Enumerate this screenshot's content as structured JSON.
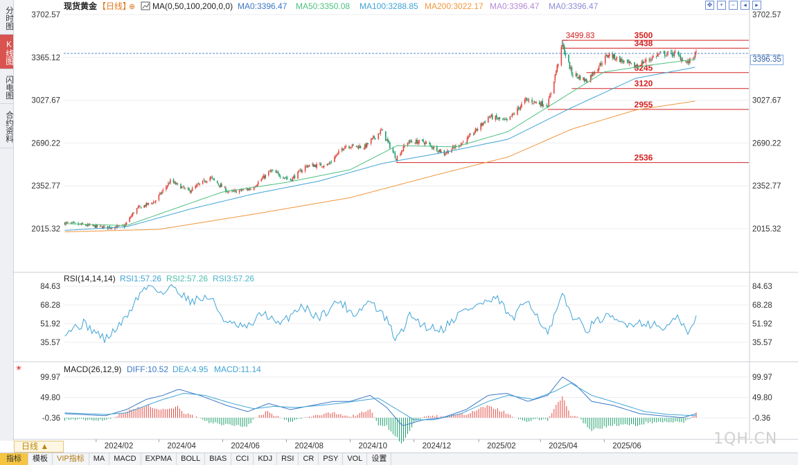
{
  "sidebar": {
    "tabs": [
      {
        "label": "分时图",
        "active": false
      },
      {
        "label": "K线图",
        "active": true
      },
      {
        "label": "闪电图",
        "active": false
      },
      {
        "label": "合约资料",
        "active": false
      }
    ]
  },
  "header": {
    "instrument": "现货黄金",
    "period": "【日线】",
    "ma_params": "MA(0,50,100,200,0,0)",
    "ma_values": [
      {
        "label": "MA0:3396.47",
        "color": "#3b78c6"
      },
      {
        "label": "MA50:3350.08",
        "color": "#4cbf7f"
      },
      {
        "label": "MA100:3288.85",
        "color": "#3fa3d6"
      },
      {
        "label": "MA200:3022.17",
        "color": "#f0963c"
      },
      {
        "label": "MA0:3396.47",
        "color": "#b48ad6"
      },
      {
        "label": "MA0:3396.47",
        "color": "#8c8cd9"
      }
    ]
  },
  "price_badge": "3396.35",
  "period_button": "日线 ▲",
  "watermark": "1QH.CN",
  "bottom_bar": [
    "指标",
    "模板",
    "VIP指标",
    "MA",
    "MACD",
    "EXPMA",
    "BOLL",
    "BIAS",
    "CCI",
    "KDJ",
    "RSI",
    "CR",
    "PSY",
    "VOL",
    "设置"
  ],
  "colors": {
    "up": "#e2453c",
    "down": "#1a9e6a",
    "ma50": "#4cbf7f",
    "ma100": "#3fa3d6",
    "ma200": "#f0963c",
    "grid": "#eceef2",
    "level": "#d42020"
  },
  "chart_data": [
    {
      "type": "candlestick",
      "title": "现货黄金【日线】",
      "x_ticks": [
        "2024/02",
        "2024/04",
        "2024/06",
        "2024/08",
        "2024/10",
        "2024/12",
        "2025/02",
        "2025/04",
        "2025/06"
      ],
      "y_ticks": [
        "3702.57",
        "3365.12",
        "3027.67",
        "2690.22",
        "2352.77",
        "2015.32"
      ],
      "ylim": [
        2015.32,
        3702.57
      ],
      "close_path": [
        [
          "2024-01-02",
          2060
        ],
        [
          "2024-02-10",
          2025
        ],
        [
          "2024-02-28",
          2035
        ],
        [
          "2024-03-10",
          2170
        ],
        [
          "2024-03-28",
          2230
        ],
        [
          "2024-04-12",
          2390
        ],
        [
          "2024-04-30",
          2310
        ],
        [
          "2024-05-20",
          2420
        ],
        [
          "2024-06-07",
          2300
        ],
        [
          "2024-06-28",
          2330
        ],
        [
          "2024-07-17",
          2470
        ],
        [
          "2024-08-05",
          2400
        ],
        [
          "2024-08-20",
          2510
        ],
        [
          "2024-09-10",
          2520
        ],
        [
          "2024-09-26",
          2670
        ],
        [
          "2024-10-15",
          2660
        ],
        [
          "2024-10-31",
          2790
        ],
        [
          "2024-11-14",
          2570
        ],
        [
          "2024-11-25",
          2700
        ],
        [
          "2024-12-10",
          2700
        ],
        [
          "2024-12-30",
          2610
        ],
        [
          "2025-01-20",
          2710
        ],
        [
          "2025-02-11",
          2900
        ],
        [
          "2025-02-28",
          2860
        ],
        [
          "2025-03-18",
          3030
        ],
        [
          "2025-04-08",
          2990
        ],
        [
          "2025-04-22",
          3460
        ],
        [
          "2025-05-01",
          3240
        ],
        [
          "2025-05-15",
          3180
        ],
        [
          "2025-06-05",
          3390
        ],
        [
          "2025-06-30",
          3290
        ],
        [
          "2025-07-23",
          3390
        ],
        [
          "2025-08-08",
          3395
        ],
        [
          "2025-08-20",
          3320
        ],
        [
          "2025-08-28",
          3396
        ]
      ],
      "ma_lines": [
        {
          "name": "MA50",
          "points": [
            [
              "2024-01-02",
              2055
            ],
            [
              "2024-03-01",
              2040
            ],
            [
              "2024-04-15",
              2170
            ],
            [
              "2024-06-01",
              2305
            ],
            [
              "2024-08-01",
              2380
            ],
            [
              "2024-10-01",
              2480
            ],
            [
              "2024-11-15",
              2670
            ],
            [
              "2025-01-10",
              2660
            ],
            [
              "2025-03-01",
              2780
            ],
            [
              "2025-04-15",
              3010
            ],
            [
              "2025-06-01",
              3250
            ],
            [
              "2025-07-20",
              3310
            ],
            [
              "2025-08-28",
              3350
            ]
          ]
        },
        {
          "name": "MA100",
          "points": [
            [
              "2024-01-02",
              2002
            ],
            [
              "2024-03-01",
              2030
            ],
            [
              "2024-05-01",
              2170
            ],
            [
              "2024-07-01",
              2290
            ],
            [
              "2024-09-01",
              2390
            ],
            [
              "2024-11-01",
              2530
            ],
            [
              "2025-01-01",
              2620
            ],
            [
              "2025-03-01",
              2720
            ],
            [
              "2025-05-01",
              2970
            ],
            [
              "2025-07-01",
              3200
            ],
            [
              "2025-08-28",
              3289
            ]
          ]
        },
        {
          "name": "MA200",
          "points": [
            [
              "2024-01-02",
              1990
            ],
            [
              "2024-04-01",
              2010
            ],
            [
              "2024-07-01",
              2130
            ],
            [
              "2024-10-01",
              2260
            ],
            [
              "2025-01-01",
              2460
            ],
            [
              "2025-03-01",
              2580
            ],
            [
              "2025-05-01",
              2800
            ],
            [
              "2025-07-01",
              2950
            ],
            [
              "2025-08-28",
              3022
            ]
          ]
        }
      ],
      "annotations": [
        {
          "label": "3499.83",
          "date": "2025-04-22",
          "value": 3499.83,
          "type": "high_marker"
        },
        {
          "label": "3500",
          "value": 3500,
          "from": "2025-04-22",
          "type": "level"
        },
        {
          "label": "3438",
          "value": 3438,
          "from": "2025-04-22",
          "type": "level"
        },
        {
          "label": "3245",
          "value": 3245,
          "from": "2025-05-15",
          "type": "level"
        },
        {
          "label": "3120",
          "value": 3120,
          "from": "2025-05-01",
          "type": "level"
        },
        {
          "label": "2955",
          "value": 2955,
          "from": "2025-04-08",
          "type": "level"
        },
        {
          "label": "2536",
          "value": 2536,
          "from": "2024-11-14",
          "type": "level"
        }
      ],
      "current_price_line": 3396.35
    },
    {
      "type": "line",
      "title": "RSI(14,14,14)",
      "legend": [
        "RSI1:57.26",
        "RSI2:57.26",
        "RSI3:57.26"
      ],
      "y_ticks": [
        "84.63",
        "68.28",
        "51.92",
        "35.57"
      ],
      "ylim": [
        35.57,
        84.63
      ],
      "series": [
        {
          "name": "RSI1",
          "points": [
            [
              "2024-01-02",
              45
            ],
            [
              "2024-01-20",
              52
            ],
            [
              "2024-02-10",
              38
            ],
            [
              "2024-02-28",
              55
            ],
            [
              "2024-03-15",
              80
            ],
            [
              "2024-03-25",
              86
            ],
            [
              "2024-04-05",
              78
            ],
            [
              "2024-04-15",
              85
            ],
            [
              "2024-04-30",
              72
            ],
            [
              "2024-05-20",
              75
            ],
            [
              "2024-06-05",
              52
            ],
            [
              "2024-06-25",
              48
            ],
            [
              "2024-07-10",
              62
            ],
            [
              "2024-07-25",
              50
            ],
            [
              "2024-08-15",
              68
            ],
            [
              "2024-09-01",
              57
            ],
            [
              "2024-09-20",
              72
            ],
            [
              "2024-10-05",
              60
            ],
            [
              "2024-10-20",
              72
            ],
            [
              "2024-11-05",
              55
            ],
            [
              "2024-11-14",
              37
            ],
            [
              "2024-11-28",
              60
            ],
            [
              "2024-12-10",
              50
            ],
            [
              "2024-12-28",
              47
            ],
            [
              "2025-01-15",
              62
            ],
            [
              "2025-02-05",
              70
            ],
            [
              "2025-02-20",
              73
            ],
            [
              "2025-03-05",
              55
            ],
            [
              "2025-03-20",
              74
            ],
            [
              "2025-04-08",
              42
            ],
            [
              "2025-04-22",
              76
            ],
            [
              "2025-05-01",
              60
            ],
            [
              "2025-05-15",
              47
            ],
            [
              "2025-06-01",
              58
            ],
            [
              "2025-06-20",
              52
            ],
            [
              "2025-07-10",
              53
            ],
            [
              "2025-07-28",
              48
            ],
            [
              "2025-08-12",
              57
            ],
            [
              "2025-08-20",
              42
            ],
            [
              "2025-08-28",
              57
            ]
          ]
        }
      ]
    },
    {
      "type": "bar+line",
      "title": "MACD(26,12,9)",
      "legend": [
        "DIFF:10.52",
        "DEA:4.95",
        "MACD:11.14"
      ],
      "y_ticks": [
        "99.97",
        "49.80",
        "-0.36"
      ],
      "ylim": [
        -0.36,
        99.97
      ],
      "diff": [
        [
          "2024-01-02",
          10
        ],
        [
          "2024-02-10",
          5
        ],
        [
          "2024-03-01",
          20
        ],
        [
          "2024-03-20",
          45
        ],
        [
          "2024-04-05",
          55
        ],
        [
          "2024-04-20",
          70
        ],
        [
          "2024-05-10",
          55
        ],
        [
          "2024-06-05",
          30
        ],
        [
          "2024-06-25",
          15
        ],
        [
          "2024-07-15",
          35
        ],
        [
          "2024-08-05",
          20
        ],
        [
          "2024-08-25",
          30
        ],
        [
          "2024-09-15",
          40
        ],
        [
          "2024-10-01",
          40
        ],
        [
          "2024-10-20",
          55
        ],
        [
          "2024-11-05",
          25
        ],
        [
          "2024-11-20",
          -20
        ],
        [
          "2024-12-10",
          -5
        ],
        [
          "2024-12-28",
          0
        ],
        [
          "2025-01-20",
          20
        ],
        [
          "2025-02-10",
          55
        ],
        [
          "2025-02-28",
          60
        ],
        [
          "2025-03-20",
          40
        ],
        [
          "2025-04-08",
          55
        ],
        [
          "2025-04-22",
          100
        ],
        [
          "2025-05-05",
          80
        ],
        [
          "2025-05-20",
          40
        ],
        [
          "2025-06-10",
          30
        ],
        [
          "2025-07-05",
          10
        ],
        [
          "2025-07-25",
          5
        ],
        [
          "2025-08-15",
          0
        ],
        [
          "2025-08-28",
          10
        ]
      ],
      "dea": [
        [
          "2024-01-02",
          12
        ],
        [
          "2024-02-10",
          8
        ],
        [
          "2024-03-01",
          12
        ],
        [
          "2024-03-20",
          30
        ],
        [
          "2024-04-05",
          45
        ],
        [
          "2024-04-25",
          60
        ],
        [
          "2024-05-15",
          55
        ],
        [
          "2024-06-10",
          35
        ],
        [
          "2024-07-01",
          22
        ],
        [
          "2024-07-20",
          28
        ],
        [
          "2024-08-10",
          25
        ],
        [
          "2024-09-01",
          30
        ],
        [
          "2024-09-20",
          35
        ],
        [
          "2024-10-10",
          42
        ],
        [
          "2024-10-28",
          48
        ],
        [
          "2024-11-15",
          20
        ],
        [
          "2024-12-01",
          -5
        ],
        [
          "2024-12-20",
          -5
        ],
        [
          "2025-01-15",
          10
        ],
        [
          "2025-02-10",
          40
        ],
        [
          "2025-03-01",
          55
        ],
        [
          "2025-03-25",
          45
        ],
        [
          "2025-04-15",
          65
        ],
        [
          "2025-04-30",
          85
        ],
        [
          "2025-05-20",
          55
        ],
        [
          "2025-06-15",
          35
        ],
        [
          "2025-07-10",
          15
        ],
        [
          "2025-08-01",
          8
        ],
        [
          "2025-08-28",
          5
        ]
      ]
    }
  ]
}
